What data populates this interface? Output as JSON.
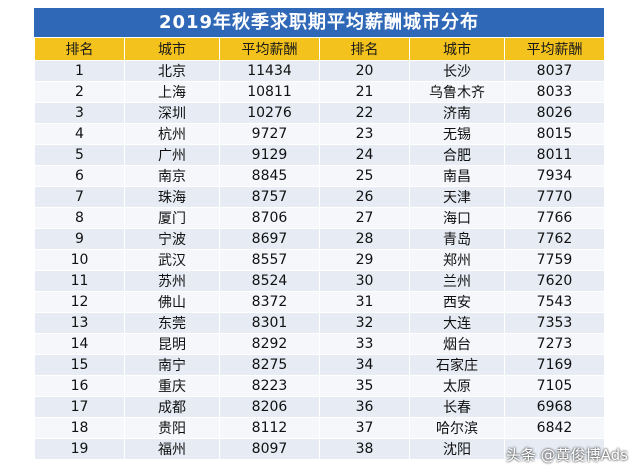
{
  "title": "2019年秋季求职期平均薪酬城市分布",
  "headers": [
    "排名",
    "城市",
    "平均薪酬",
    "排名",
    "城市",
    "平均薪酬"
  ],
  "left": [
    [
      "1",
      "北京",
      "11434"
    ],
    [
      "2",
      "上海",
      "10811"
    ],
    [
      "3",
      "深圳",
      "10276"
    ],
    [
      "4",
      "杭州",
      "9727"
    ],
    [
      "5",
      "广州",
      "9129"
    ],
    [
      "6",
      "南京",
      "8845"
    ],
    [
      "7",
      "珠海",
      "8757"
    ],
    [
      "8",
      "厦门",
      "8706"
    ],
    [
      "9",
      "宁波",
      "8697"
    ],
    [
      "10",
      "武汉",
      "8557"
    ],
    [
      "11",
      "苏州",
      "8524"
    ],
    [
      "12",
      "佛山",
      "8372"
    ],
    [
      "13",
      "东莞",
      "8301"
    ],
    [
      "14",
      "昆明",
      "8292"
    ],
    [
      "15",
      "南宁",
      "8275"
    ],
    [
      "16",
      "重庆",
      "8223"
    ],
    [
      "17",
      "成都",
      "8206"
    ],
    [
      "18",
      "贵阳",
      "8112"
    ],
    [
      "19",
      "福州",
      "8097"
    ]
  ],
  "right": [
    [
      "20",
      "长沙",
      "8037"
    ],
    [
      "21",
      "乌鲁木齐",
      "8033"
    ],
    [
      "22",
      "济南",
      "8026"
    ],
    [
      "23",
      "无锡",
      "8015"
    ],
    [
      "24",
      "合肥",
      "8011"
    ],
    [
      "25",
      "南昌",
      "7934"
    ],
    [
      "26",
      "天津",
      "7770"
    ],
    [
      "27",
      "海口",
      "7766"
    ],
    [
      "28",
      "青岛",
      "7762"
    ],
    [
      "29",
      "郑州",
      "7759"
    ],
    [
      "30",
      "兰州",
      "7620"
    ],
    [
      "31",
      "西安",
      "7543"
    ],
    [
      "32",
      "大连",
      "7353"
    ],
    [
      "33",
      "烟台",
      "7273"
    ],
    [
      "34",
      "石家庄",
      "7169"
    ],
    [
      "35",
      "太原",
      "7105"
    ],
    [
      "36",
      "长春",
      "6968"
    ],
    [
      "37",
      "哈尔滨",
      "6842"
    ],
    [
      "38",
      "沈阳",
      ""
    ]
  ],
  "watermark": "头条 @黄俊博Ads"
}
